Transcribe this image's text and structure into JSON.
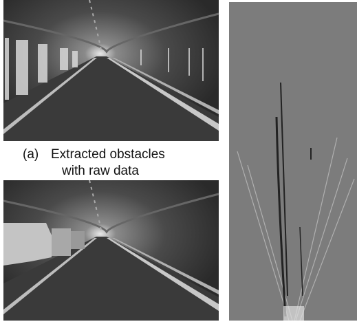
{
  "caption": {
    "label": "(a)",
    "lines": [
      "Extracted obstacles",
      "with raw data"
    ]
  }
}
